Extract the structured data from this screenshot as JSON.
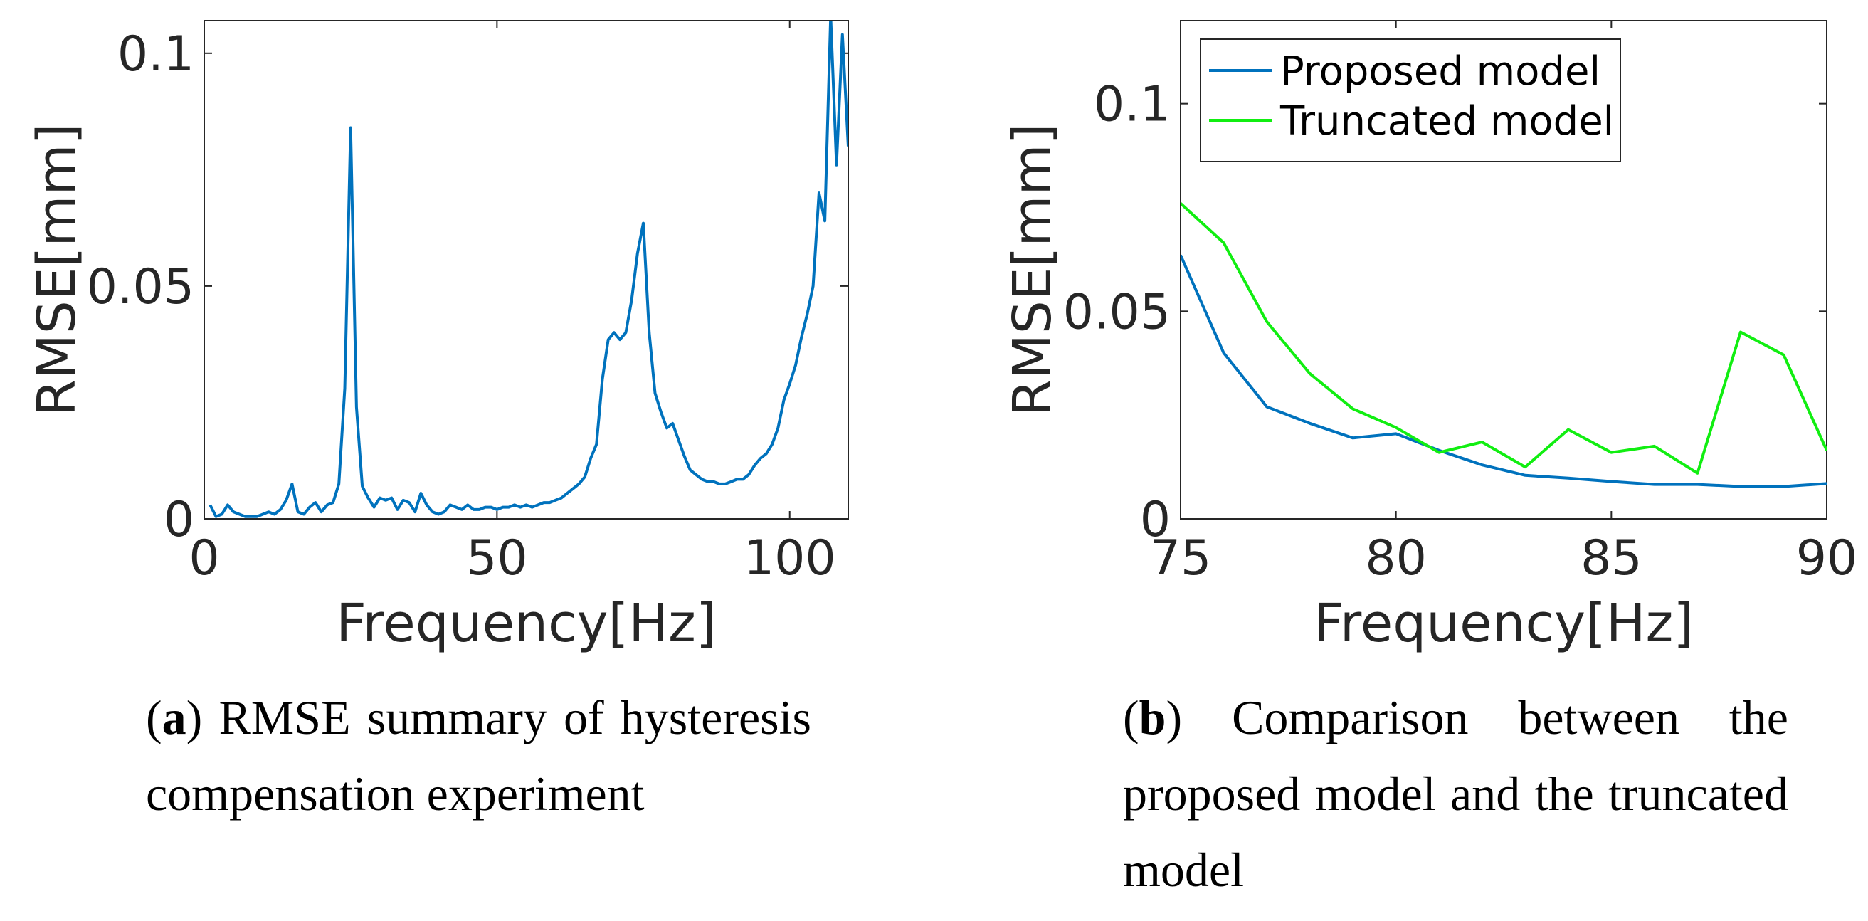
{
  "chart_data": [
    {
      "type": "line",
      "panel": "a",
      "title": "",
      "xlabel": "Frequency[Hz]",
      "ylabel": "RMSE[mm]",
      "xlim": [
        0,
        110
      ],
      "ylim": [
        0,
        0.107
      ],
      "xticks": [
        0,
        50,
        100
      ],
      "yticks": [
        0,
        0.05,
        0.1
      ],
      "xtick_labels": [
        "0",
        "50",
        "100"
      ],
      "ytick_labels": [
        "0",
        "0.05",
        "0.1"
      ],
      "grid": false,
      "series": [
        {
          "name": "RMSE",
          "color": "#0072bd",
          "x": [
            1,
            2,
            3,
            4,
            5,
            6,
            7,
            8,
            9,
            10,
            11,
            12,
            13,
            14,
            15,
            16,
            17,
            18,
            19,
            20,
            21,
            22,
            23,
            24,
            25,
            26,
            27,
            28,
            29,
            30,
            31,
            32,
            33,
            34,
            35,
            36,
            37,
            38,
            39,
            40,
            41,
            42,
            43,
            44,
            45,
            46,
            47,
            48,
            49,
            50,
            51,
            52,
            53,
            54,
            55,
            56,
            57,
            58,
            59,
            60,
            61,
            62,
            63,
            64,
            65,
            66,
            67,
            68,
            69,
            70,
            71,
            72,
            73,
            74,
            75,
            76,
            77,
            78,
            79,
            80,
            81,
            82,
            83,
            84,
            85,
            86,
            87,
            88,
            89,
            90,
            91,
            92,
            93,
            94,
            95,
            96,
            97,
            98,
            99,
            100,
            101,
            102,
            103,
            104,
            105,
            106,
            107,
            108,
            109,
            110
          ],
          "y": [
            0.003,
            0.0005,
            0.001,
            0.003,
            0.0015,
            0.001,
            0.0005,
            0.0005,
            0.0005,
            0.001,
            0.0015,
            0.001,
            0.002,
            0.004,
            0.0075,
            0.0015,
            0.001,
            0.0025,
            0.0035,
            0.0015,
            0.003,
            0.0035,
            0.0075,
            0.028,
            0.084,
            0.024,
            0.007,
            0.0045,
            0.0025,
            0.0045,
            0.004,
            0.0045,
            0.002,
            0.004,
            0.0035,
            0.0015,
            0.0055,
            0.003,
            0.0015,
            0.001,
            0.0015,
            0.003,
            0.0025,
            0.002,
            0.003,
            0.002,
            0.002,
            0.0025,
            0.0025,
            0.002,
            0.0025,
            0.0025,
            0.003,
            0.0025,
            0.003,
            0.0025,
            0.003,
            0.0035,
            0.0035,
            0.004,
            0.0045,
            0.0055,
            0.0065,
            0.0075,
            0.009,
            0.013,
            0.016,
            0.03,
            0.0385,
            0.04,
            0.0385,
            0.04,
            0.047,
            0.057,
            0.0635,
            0.04,
            0.027,
            0.023,
            0.0195,
            0.0205,
            0.017,
            0.0135,
            0.0105,
            0.0095,
            0.0085,
            0.008,
            0.008,
            0.0075,
            0.0075,
            0.008,
            0.0085,
            0.0085,
            0.0095,
            0.0115,
            0.013,
            0.014,
            0.016,
            0.0195,
            0.0255,
            0.029,
            0.033,
            0.039,
            0.044,
            0.05,
            0.07,
            0.064,
            0.108,
            0.076,
            0.104,
            0.08
          ]
        }
      ]
    },
    {
      "type": "line",
      "panel": "b",
      "title": "",
      "xlabel": "Frequency[Hz]",
      "ylabel": "RMSE[mm]",
      "xlim": [
        75,
        90
      ],
      "ylim": [
        0,
        0.12
      ],
      "xticks": [
        75,
        80,
        85,
        90
      ],
      "yticks": [
        0,
        0.05,
        0.1
      ],
      "xtick_labels": [
        "75",
        "80",
        "85",
        "90"
      ],
      "ytick_labels": [
        "0",
        "0.05",
        "0.1"
      ],
      "grid": false,
      "legend": "top-left",
      "series": [
        {
          "name": "Proposed model",
          "color": "#0072bd",
          "x": [
            75,
            76,
            77,
            78,
            79,
            80,
            81,
            82,
            83,
            84,
            85,
            86,
            87,
            88,
            89,
            90
          ],
          "y": [
            0.0635,
            0.04,
            0.027,
            0.023,
            0.0195,
            0.0205,
            0.0165,
            0.013,
            0.0105,
            0.0098,
            0.009,
            0.0083,
            0.0083,
            0.0078,
            0.0078,
            0.0085
          ]
        },
        {
          "name": "Truncated model",
          "color": "#11ee11",
          "x": [
            75,
            76,
            77,
            78,
            79,
            80,
            81,
            82,
            83,
            84,
            85,
            86,
            87,
            88,
            89,
            90
          ],
          "y": [
            0.076,
            0.0665,
            0.0475,
            0.035,
            0.0265,
            0.022,
            0.016,
            0.0185,
            0.0125,
            0.0215,
            0.016,
            0.0175,
            0.011,
            0.045,
            0.0395,
            0.0165
          ]
        }
      ]
    }
  ],
  "captions": {
    "a": {
      "label": "a",
      "text": "RMSE summary of hysteresis compensation experiment"
    },
    "b": {
      "label": "b",
      "text": "Comparison between the proposed model and the truncated model"
    }
  }
}
